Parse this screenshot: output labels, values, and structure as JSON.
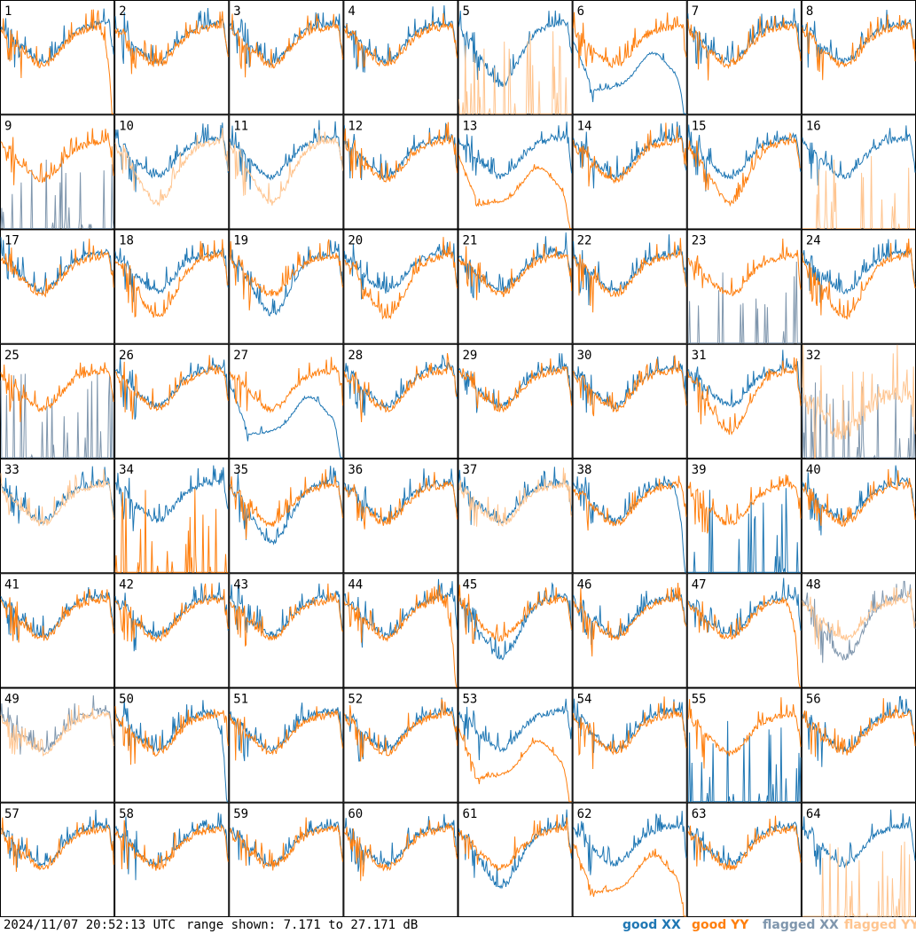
{
  "footer": {
    "timestamp": "2024/11/07 20:52:13 UTC",
    "range_text": "range shown: 7.171 to 27.171 dB"
  },
  "legend": [
    {
      "key": "good_xx",
      "label": "good XX",
      "color": "#1f77b4"
    },
    {
      "key": "good_yy",
      "label": "good YY",
      "color": "#ff7f0e"
    },
    {
      "key": "flagged_xx",
      "label": "flagged XX",
      "color": "#7f96ad"
    },
    {
      "key": "flagged_yy",
      "label": "flagged YY",
      "color": "#ffc590"
    }
  ],
  "chart_data": {
    "type": "line",
    "layout": "small-multiples 8x8",
    "ylim": [
      7.171,
      27.171
    ],
    "yunit": "dB",
    "x": "channel index (unlabeled)",
    "panels": [
      {
        "id": 1,
        "xx": "good",
        "yy": "good",
        "xx_shape": "normal",
        "yy_shape": "drop-end"
      },
      {
        "id": 2,
        "xx": "good",
        "yy": "good",
        "xx_shape": "normal",
        "yy_shape": "normal"
      },
      {
        "id": 3,
        "xx": "good",
        "yy": "good",
        "xx_shape": "normal",
        "yy_shape": "normal"
      },
      {
        "id": 4,
        "xx": "good",
        "yy": "good",
        "xx_shape": "normal",
        "yy_shape": "normal"
      },
      {
        "id": 5,
        "xx": "good",
        "yy": "flagged",
        "xx_shape": "deep",
        "yy_shape": "spikes"
      },
      {
        "id": 6,
        "xx": "good",
        "yy": "good",
        "xx_shape": "low-bump-drop",
        "yy_shape": "normal"
      },
      {
        "id": 7,
        "xx": "good",
        "yy": "good",
        "xx_shape": "normal",
        "yy_shape": "normal"
      },
      {
        "id": 8,
        "xx": "good",
        "yy": "good",
        "xx_shape": "normal",
        "yy_shape": "normal"
      },
      {
        "id": 9,
        "xx": "flagged",
        "yy": "good",
        "xx_shape": "spikes",
        "yy_shape": "normal"
      },
      {
        "id": 10,
        "xx": "good",
        "yy": "flagged",
        "xx_shape": "normal",
        "yy_shape": "deep"
      },
      {
        "id": 11,
        "xx": "good",
        "yy": "flagged",
        "xx_shape": "normal",
        "yy_shape": "deep"
      },
      {
        "id": 12,
        "xx": "good",
        "yy": "good",
        "xx_shape": "normal",
        "yy_shape": "normal"
      },
      {
        "id": 13,
        "xx": "good",
        "yy": "good",
        "xx_shape": "normal",
        "yy_shape": "low-bump-drop"
      },
      {
        "id": 14,
        "xx": "good",
        "yy": "good",
        "xx_shape": "normal",
        "yy_shape": "normal"
      },
      {
        "id": 15,
        "xx": "good",
        "yy": "good",
        "xx_shape": "normal",
        "yy_shape": "deep"
      },
      {
        "id": 16,
        "xx": "good",
        "yy": "flagged",
        "xx_shape": "normal",
        "yy_shape": "spikes"
      },
      {
        "id": 17,
        "xx": "good",
        "yy": "good",
        "xx_shape": "normal",
        "yy_shape": "normal"
      },
      {
        "id": 18,
        "xx": "good",
        "yy": "good",
        "xx_shape": "normal",
        "yy_shape": "deep"
      },
      {
        "id": 19,
        "xx": "good",
        "yy": "good",
        "xx_shape": "deep",
        "yy_shape": "normal"
      },
      {
        "id": 20,
        "xx": "good",
        "yy": "good",
        "xx_shape": "normal",
        "yy_shape": "deep"
      },
      {
        "id": 21,
        "xx": "good",
        "yy": "good",
        "xx_shape": "normal",
        "yy_shape": "normal"
      },
      {
        "id": 22,
        "xx": "good",
        "yy": "good",
        "xx_shape": "normal",
        "yy_shape": "normal"
      },
      {
        "id": 23,
        "xx": "flagged",
        "yy": "good",
        "xx_shape": "spikes",
        "yy_shape": "normal"
      },
      {
        "id": 24,
        "xx": "good",
        "yy": "good",
        "xx_shape": "normal",
        "yy_shape": "deep"
      },
      {
        "id": 25,
        "xx": "flagged",
        "yy": "good",
        "xx_shape": "spikes",
        "yy_shape": "normal"
      },
      {
        "id": 26,
        "xx": "good",
        "yy": "good",
        "xx_shape": "normal",
        "yy_shape": "normal"
      },
      {
        "id": 27,
        "xx": "good",
        "yy": "good",
        "xx_shape": "low-bump-drop",
        "yy_shape": "normal"
      },
      {
        "id": 28,
        "xx": "good",
        "yy": "good",
        "xx_shape": "normal",
        "yy_shape": "normal"
      },
      {
        "id": 29,
        "xx": "good",
        "yy": "good",
        "xx_shape": "normal",
        "yy_shape": "normal"
      },
      {
        "id": 30,
        "xx": "good",
        "yy": "good",
        "xx_shape": "normal",
        "yy_shape": "normal"
      },
      {
        "id": 31,
        "xx": "good",
        "yy": "good",
        "xx_shape": "normal",
        "yy_shape": "deep"
      },
      {
        "id": 32,
        "xx": "flagged",
        "yy": "flagged",
        "xx_shape": "spikes",
        "yy_shape": "noisy"
      },
      {
        "id": 33,
        "xx": "good",
        "yy": "flagged",
        "xx_shape": "normal",
        "yy_shape": "normal"
      },
      {
        "id": 34,
        "xx": "good",
        "yy": "good",
        "xx_shape": "normal",
        "yy_shape": "spikes"
      },
      {
        "id": 35,
        "xx": "good",
        "yy": "good",
        "xx_shape": "deep",
        "yy_shape": "normal"
      },
      {
        "id": 36,
        "xx": "good",
        "yy": "good",
        "xx_shape": "normal",
        "yy_shape": "normal"
      },
      {
        "id": 37,
        "xx": "good",
        "yy": "flagged",
        "xx_shape": "normal",
        "yy_shape": "normal"
      },
      {
        "id": 38,
        "xx": "good",
        "yy": "good",
        "xx_shape": "drop-end",
        "yy_shape": "normal"
      },
      {
        "id": 39,
        "xx": "good",
        "yy": "good",
        "xx_shape": "spikes",
        "yy_shape": "normal"
      },
      {
        "id": 40,
        "xx": "good",
        "yy": "good",
        "xx_shape": "normal",
        "yy_shape": "normal"
      },
      {
        "id": 41,
        "xx": "good",
        "yy": "good",
        "xx_shape": "normal",
        "yy_shape": "normal"
      },
      {
        "id": 42,
        "xx": "good",
        "yy": "good",
        "xx_shape": "normal",
        "yy_shape": "normal"
      },
      {
        "id": 43,
        "xx": "good",
        "yy": "good",
        "xx_shape": "normal",
        "yy_shape": "normal"
      },
      {
        "id": 44,
        "xx": "good",
        "yy": "good",
        "xx_shape": "normal",
        "yy_shape": "drop-end"
      },
      {
        "id": 45,
        "xx": "good",
        "yy": "good",
        "xx_shape": "deep",
        "yy_shape": "normal"
      },
      {
        "id": 46,
        "xx": "good",
        "yy": "good",
        "xx_shape": "normal",
        "yy_shape": "normal"
      },
      {
        "id": 47,
        "xx": "good",
        "yy": "good",
        "xx_shape": "normal",
        "yy_shape": "drop-end"
      },
      {
        "id": 48,
        "xx": "flagged",
        "yy": "flagged",
        "xx_shape": "deep",
        "yy_shape": "normal"
      },
      {
        "id": 49,
        "xx": "flagged",
        "yy": "flagged",
        "xx_shape": "normal",
        "yy_shape": "normal"
      },
      {
        "id": 50,
        "xx": "good",
        "yy": "good",
        "xx_shape": "drop-end",
        "yy_shape": "normal"
      },
      {
        "id": 51,
        "xx": "good",
        "yy": "good",
        "xx_shape": "normal",
        "yy_shape": "normal"
      },
      {
        "id": 52,
        "xx": "good",
        "yy": "good",
        "xx_shape": "normal",
        "yy_shape": "normal"
      },
      {
        "id": 53,
        "xx": "good",
        "yy": "good",
        "xx_shape": "normal",
        "yy_shape": "low-bump-drop"
      },
      {
        "id": 54,
        "xx": "good",
        "yy": "good",
        "xx_shape": "normal",
        "yy_shape": "normal"
      },
      {
        "id": 55,
        "xx": "good",
        "yy": "good",
        "xx_shape": "spikes",
        "yy_shape": "normal"
      },
      {
        "id": 56,
        "xx": "good",
        "yy": "good",
        "xx_shape": "normal",
        "yy_shape": "normal"
      },
      {
        "id": 57,
        "xx": "good",
        "yy": "good",
        "xx_shape": "normal",
        "yy_shape": "normal"
      },
      {
        "id": 58,
        "xx": "good",
        "yy": "good",
        "xx_shape": "normal",
        "yy_shape": "normal"
      },
      {
        "id": 59,
        "xx": "good",
        "yy": "good",
        "xx_shape": "normal",
        "yy_shape": "normal"
      },
      {
        "id": 60,
        "xx": "good",
        "yy": "good",
        "xx_shape": "normal",
        "yy_shape": "normal"
      },
      {
        "id": 61,
        "xx": "good",
        "yy": "good",
        "xx_shape": "deep",
        "yy_shape": "normal"
      },
      {
        "id": 62,
        "xx": "good",
        "yy": "good",
        "xx_shape": "normal",
        "yy_shape": "low-bump-drop"
      },
      {
        "id": 63,
        "xx": "good",
        "yy": "good",
        "xx_shape": "normal",
        "yy_shape": "normal"
      },
      {
        "id": 64,
        "xx": "good",
        "yy": "flagged",
        "xx_shape": "normal",
        "yy_shape": "spikes"
      }
    ]
  }
}
